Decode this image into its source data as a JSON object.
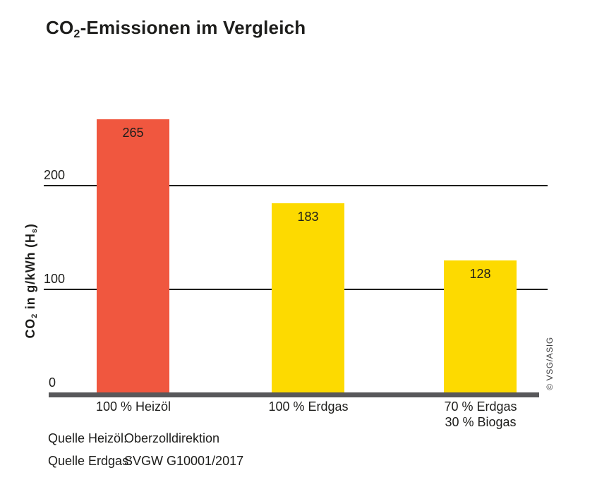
{
  "title": {
    "pre": "CO",
    "sub": "2",
    "rest": "-Emissionen im Vergleich"
  },
  "y_axis": {
    "label_parts": {
      "p1": "CO",
      "sub1": "2",
      "p2": " in g/kWh (H",
      "sub2": "s",
      "p3": ")"
    },
    "ticks": [
      {
        "value": 0,
        "label": "0"
      },
      {
        "value": 100,
        "label": "100"
      },
      {
        "value": 200,
        "label": "200"
      }
    ]
  },
  "chart_data": {
    "type": "bar",
    "title": "CO2-Emissionen im Vergleich",
    "ylabel": "CO2 in g/kWh (Hs)",
    "categories": [
      "100 % Heizöl",
      "100 % Erdgas",
      "70 % Erdgas / 30 % Biogas"
    ],
    "category_lines": [
      [
        "100 % Heizöl"
      ],
      [
        "100 % Erdgas"
      ],
      [
        "70 % Erdgas",
        "30 % Biogas"
      ]
    ],
    "values": [
      265,
      183,
      128
    ],
    "bar_colors": [
      "#f0573f",
      "#fdda00",
      "#fdda00"
    ],
    "yticks": [
      0,
      100,
      200
    ],
    "ylim": [
      0,
      280
    ],
    "grid": "horizontal gridlines at 100 and 200",
    "value_labels_position": "inside-top",
    "legend": "none"
  },
  "sources": [
    {
      "label": "Quelle Heizöl:",
      "value": "Oberzolldirektion"
    },
    {
      "label": "Quelle Erdgas:",
      "value": "SVGW G10001/2017"
    }
  ],
  "copyright": "© VSG/ASIG",
  "colors": {
    "bar_red": "#f0573f",
    "bar_yellow": "#fdda00",
    "baseline_gray": "#58585a",
    "text": "#1d1d1b"
  }
}
